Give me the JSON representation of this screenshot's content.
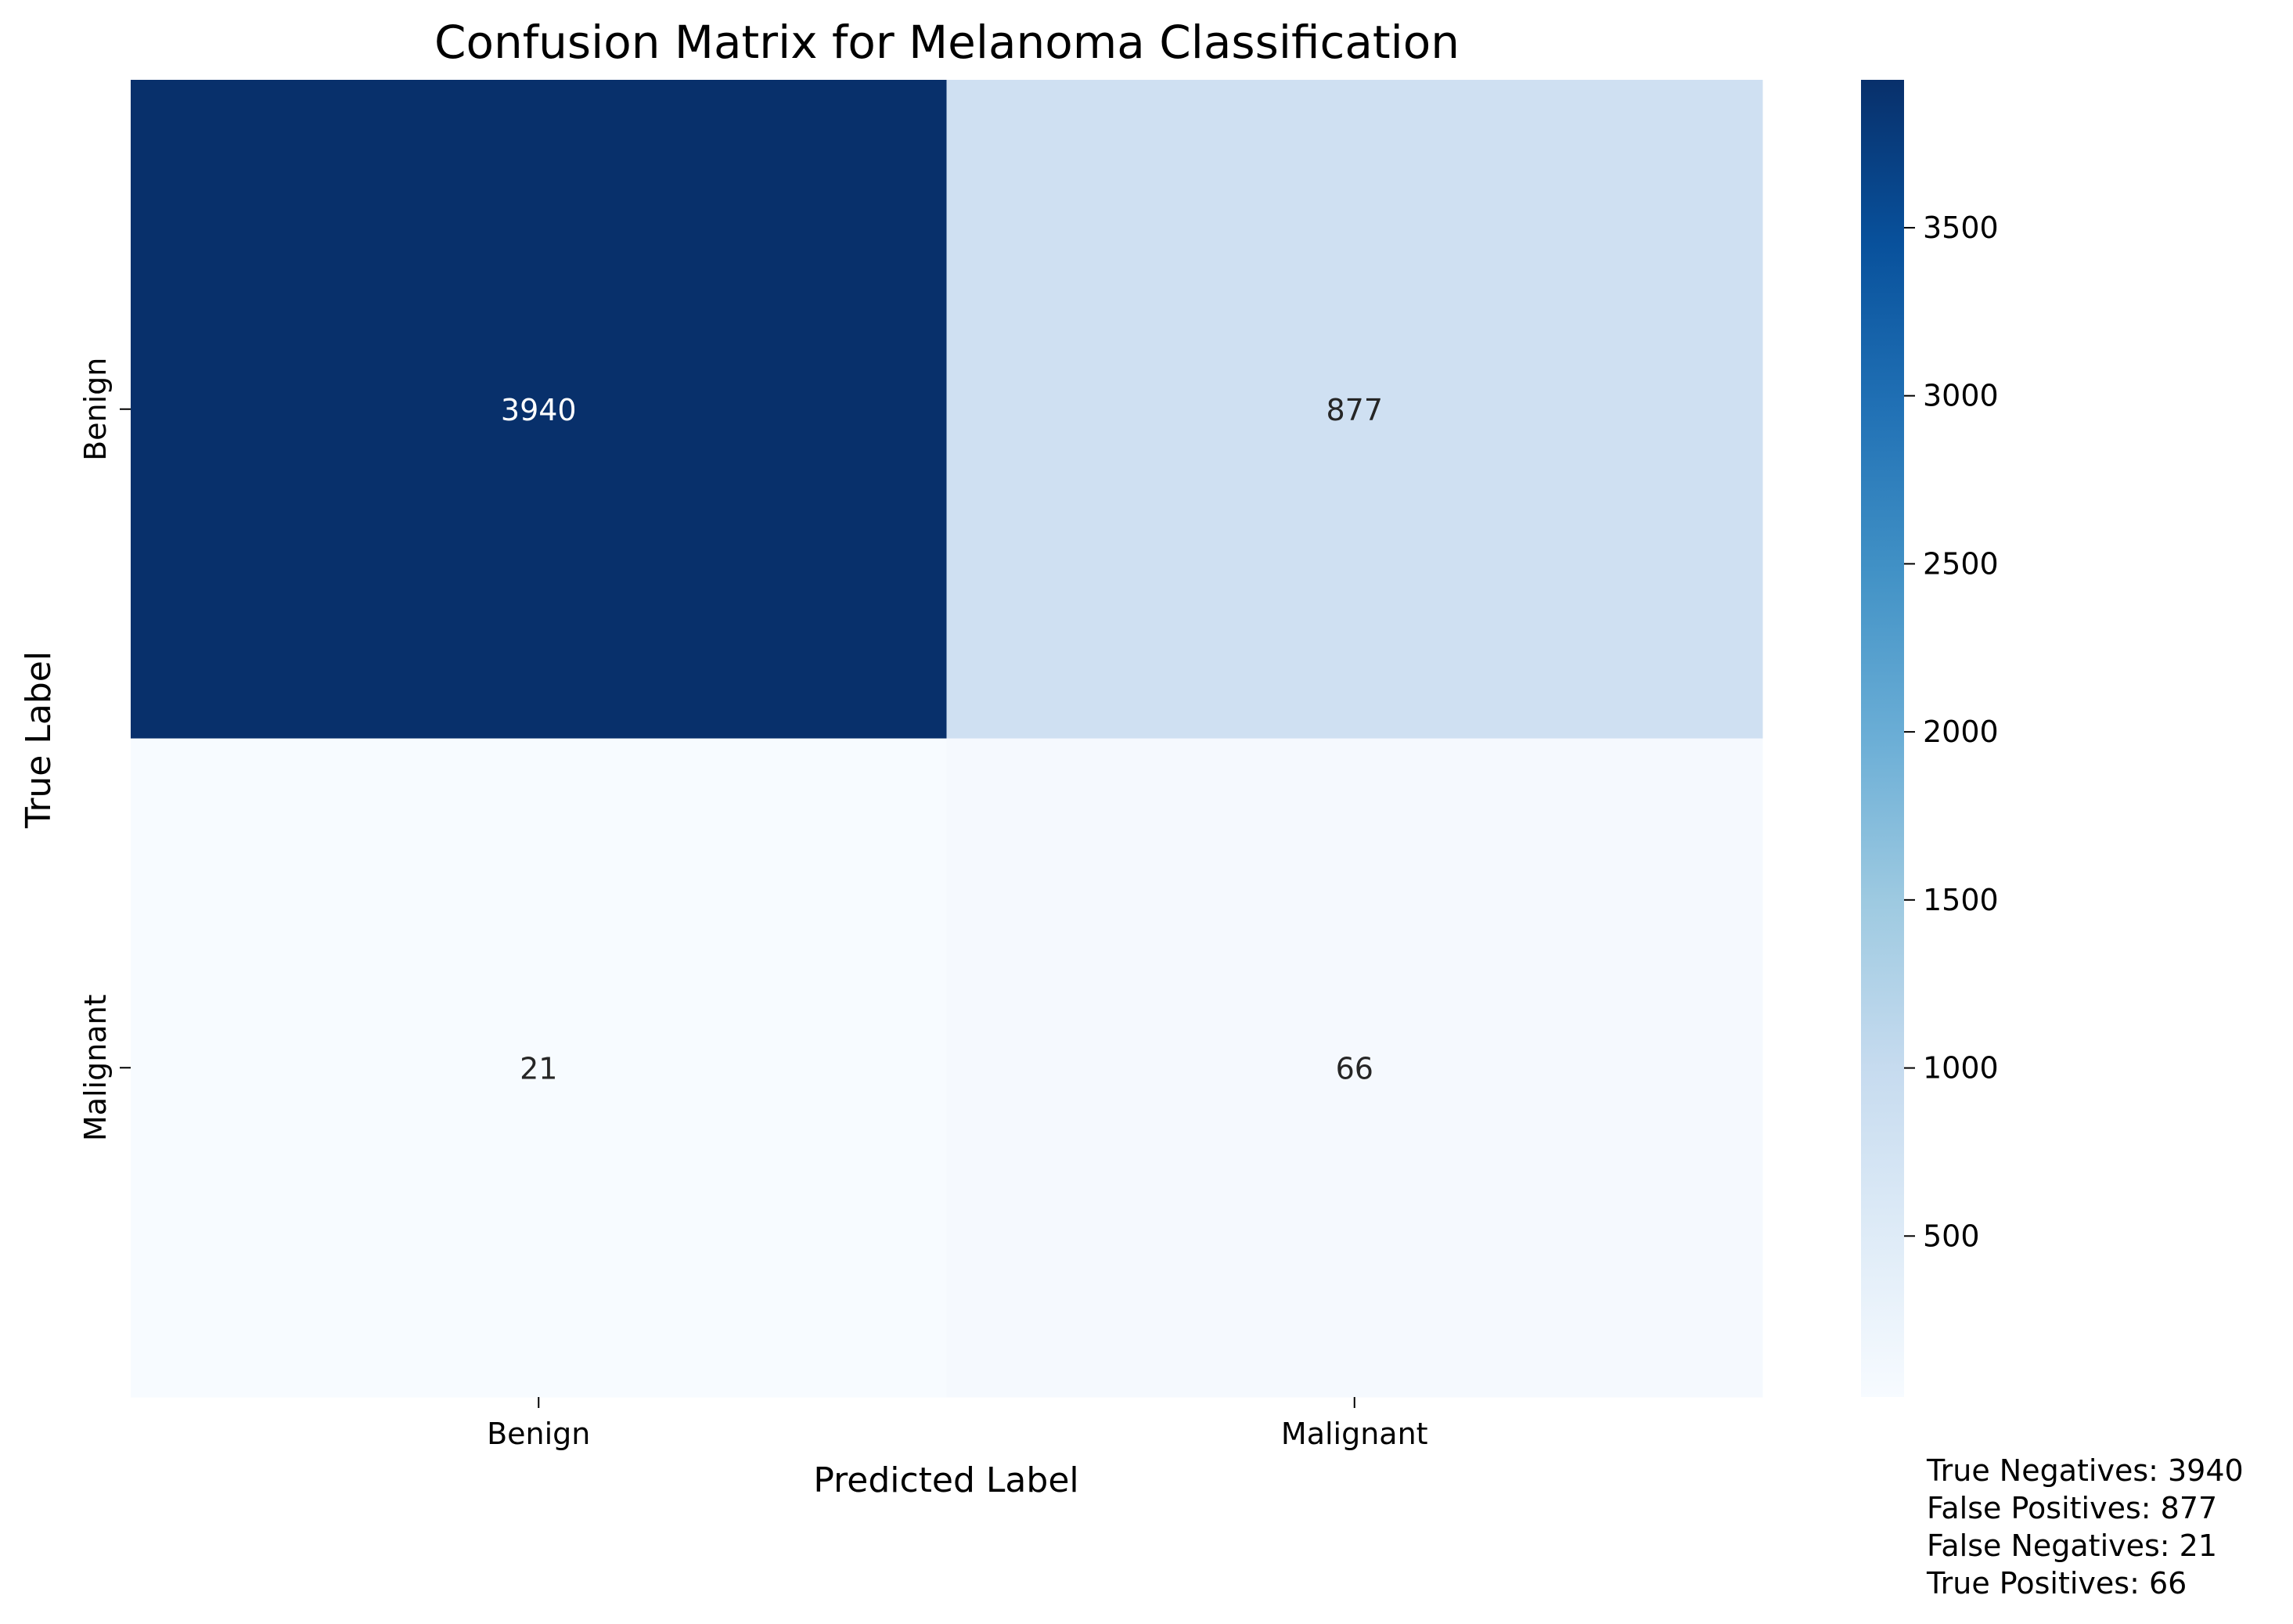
{
  "chart_data": {
    "type": "heatmap",
    "title": "Confusion Matrix for Melanoma Classification",
    "xlabel": "Predicted Label",
    "ylabel": "True Label",
    "x_categories": [
      "Benign",
      "Malignant"
    ],
    "y_categories": [
      "Benign",
      "Malignant"
    ],
    "values": [
      [
        3940,
        877
      ],
      [
        21,
        66
      ]
    ],
    "colormap": "Blues",
    "colorbar": {
      "range": [
        21,
        3940
      ],
      "ticks": [
        500,
        1000,
        1500,
        2000,
        2500,
        3000,
        3500
      ]
    },
    "cell_colors": [
      [
        "#08306b",
        "#cfe0f2"
      ],
      [
        "#f7fbff",
        "#f5f9fe"
      ]
    ],
    "cell_text_colors": [
      [
        "#ffffff",
        "#262626"
      ],
      [
        "#262626",
        "#262626"
      ]
    ]
  },
  "stats": [
    "True Negatives: 3940",
    "False Positives: 877",
    "False Negatives: 21",
    "True Positives: 66"
  ]
}
